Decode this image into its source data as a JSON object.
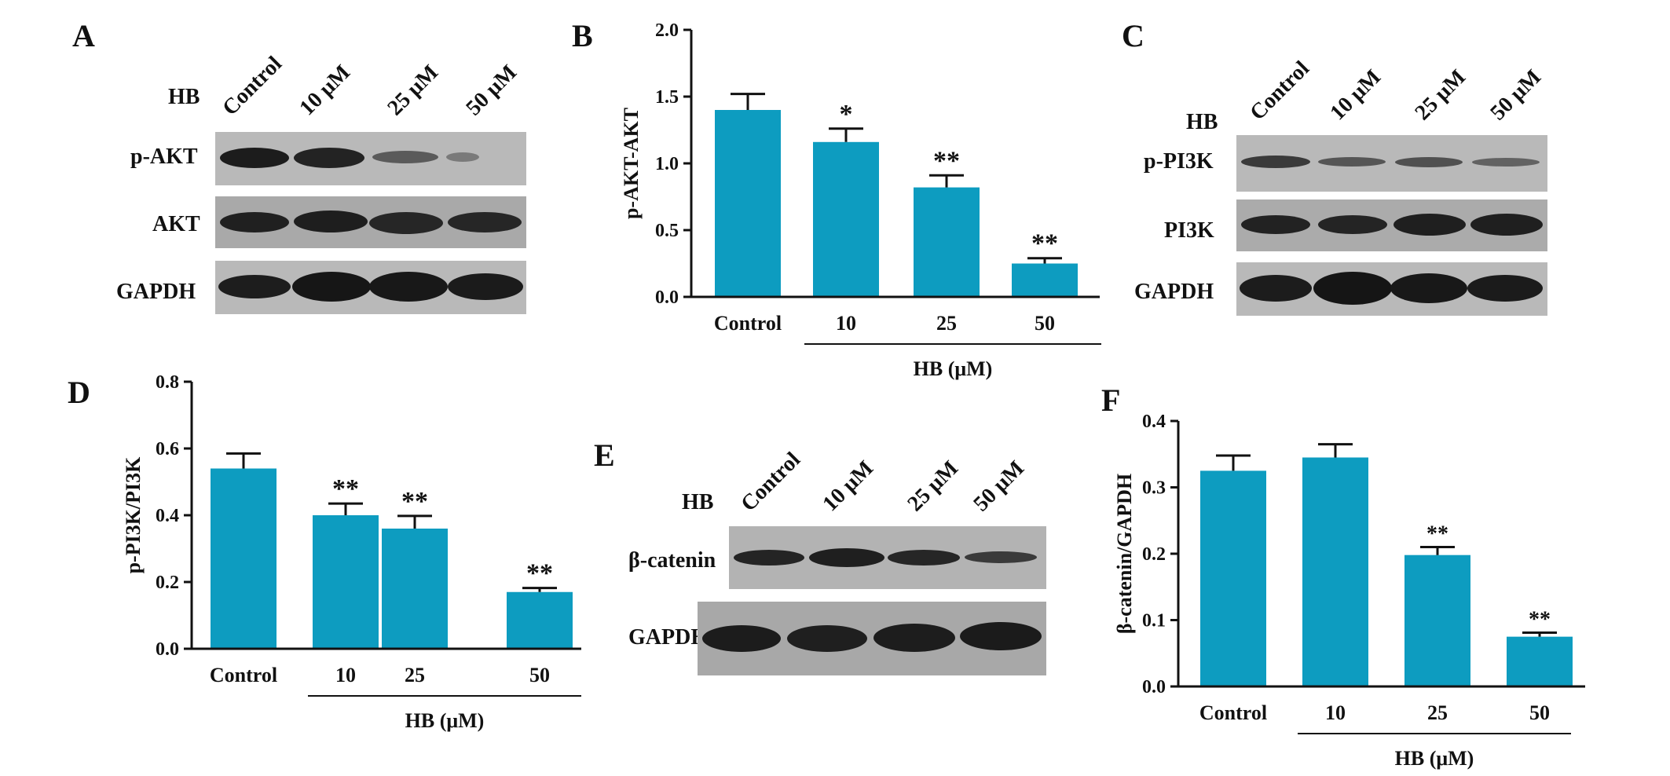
{
  "panel_letters": [
    "A",
    "B",
    "C",
    "D",
    "E",
    "F"
  ],
  "blot_a": {
    "treatment_label": "HB",
    "lanes": [
      "Control",
      "10 μM",
      "25 μM",
      "50 μM"
    ],
    "rows": [
      "p-AKT",
      "AKT",
      "GAPDH"
    ]
  },
  "blot_c": {
    "treatment_label": "HB",
    "lanes": [
      "Control",
      "10 μM",
      "25 μM",
      "50 μM"
    ],
    "rows": [
      "p-PI3K",
      "PI3K",
      "GAPDH"
    ]
  },
  "blot_e": {
    "treatment_label": "HB",
    "lanes": [
      "Control",
      "10 μM",
      "25 μM",
      "50 μM"
    ],
    "rows": [
      "β-catenin",
      "GAPDH"
    ]
  },
  "colors": {
    "bar": "#0d9cc0",
    "axis": "#111111",
    "band": "#2a2a2a",
    "membrane": "#b9b9b9"
  },
  "chart_data": [
    {
      "type": "bar",
      "panel": "B",
      "categories": [
        "Control",
        "10",
        "25",
        "50"
      ],
      "values": [
        1.4,
        1.16,
        0.82,
        0.25
      ],
      "errors": [
        0.12,
        0.1,
        0.09,
        0.04
      ],
      "significance": [
        "",
        "*",
        "**",
        "**"
      ],
      "ylabel": "p-AKT-AKT",
      "xlabel": "HB (μM)",
      "ylim": [
        0,
        2.0
      ],
      "yticks": [
        "0.0",
        "0.5",
        "1.0",
        "1.5",
        "2.0"
      ]
    },
    {
      "type": "bar",
      "panel": "D",
      "categories": [
        "Control",
        "10",
        "25",
        "50"
      ],
      "values": [
        0.54,
        0.4,
        0.36,
        0.17
      ],
      "errors": [
        0.045,
        0.035,
        0.038,
        0.012
      ],
      "significance": [
        "",
        "**",
        "**",
        "**"
      ],
      "ylabel": "p-PI3K/PI3K",
      "xlabel": "HB (μM)",
      "ylim": [
        0,
        0.8
      ],
      "yticks": [
        "0.0",
        "0.2",
        "0.4",
        "0.6",
        "0.8"
      ]
    },
    {
      "type": "bar",
      "panel": "F",
      "categories": [
        "Control",
        "10",
        "25",
        "50"
      ],
      "values": [
        0.325,
        0.345,
        0.198,
        0.075
      ],
      "errors": [
        0.023,
        0.02,
        0.012,
        0.006
      ],
      "significance": [
        "",
        "",
        "**",
        "**"
      ],
      "ylabel": "β-catenin/GAPDH",
      "xlabel": "HB (μM)",
      "ylim": [
        0,
        0.4
      ],
      "yticks": [
        "0.0",
        "0.1",
        "0.2",
        "0.3",
        "0.4"
      ]
    }
  ]
}
